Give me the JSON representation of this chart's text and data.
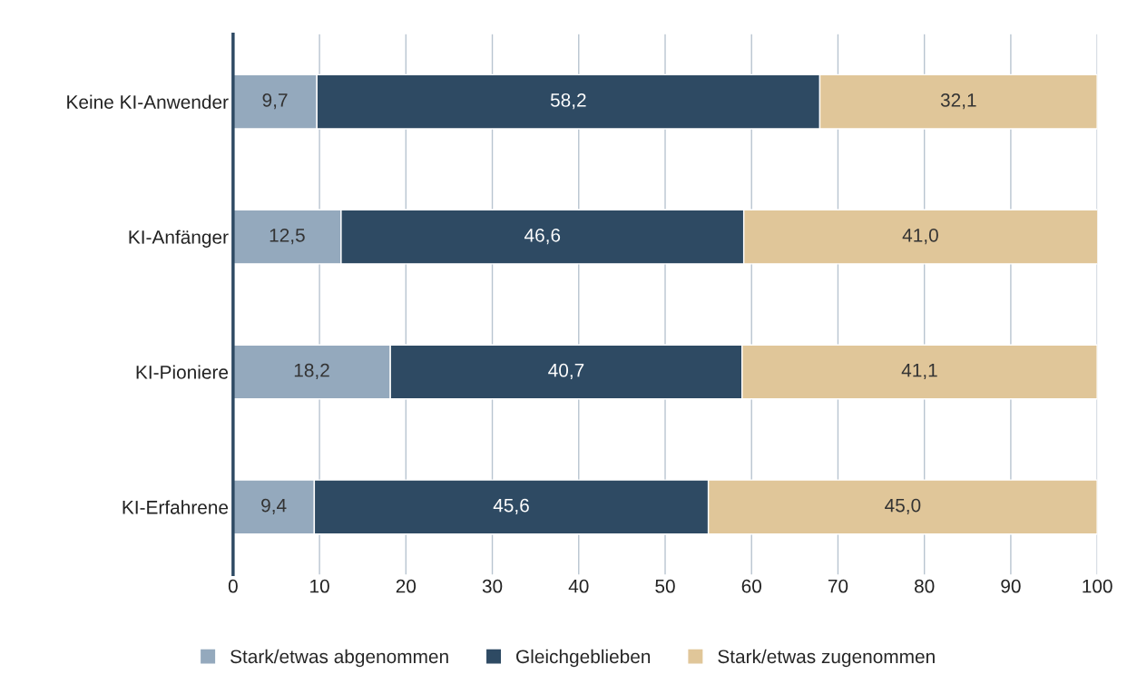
{
  "chart_data": {
    "type": "bar",
    "orientation": "horizontal",
    "stacked": true,
    "categories": [
      "Keine KI-Anwender",
      "KI-Anfänger",
      "KI-Pioniere",
      "KI-Erfahrene"
    ],
    "series": [
      {
        "name": "Stark/etwas abgenommen",
        "color": "#94a9bd",
        "values": [
          9.7,
          12.5,
          18.2,
          9.4
        ],
        "value_labels": [
          "9,7",
          "12,5",
          "18,2",
          "9,4"
        ]
      },
      {
        "name": "Gleichgeblieben",
        "color": "#2e4a63",
        "values": [
          58.2,
          46.6,
          40.7,
          45.6
        ],
        "value_labels": [
          "58,2",
          "46,6",
          "40,7",
          "45,6"
        ]
      },
      {
        "name": "Stark/etwas zugenommen",
        "color": "#e0c699",
        "values": [
          32.1,
          41.0,
          41.1,
          45.0
        ],
        "value_labels": [
          "32,1",
          "41,0",
          "41,1",
          "45,0"
        ]
      }
    ],
    "xlim": [
      0,
      100
    ],
    "xticks": [
      0,
      10,
      20,
      30,
      40,
      50,
      60,
      70,
      80,
      90,
      100
    ],
    "grid": "x",
    "legend": "bottom"
  }
}
